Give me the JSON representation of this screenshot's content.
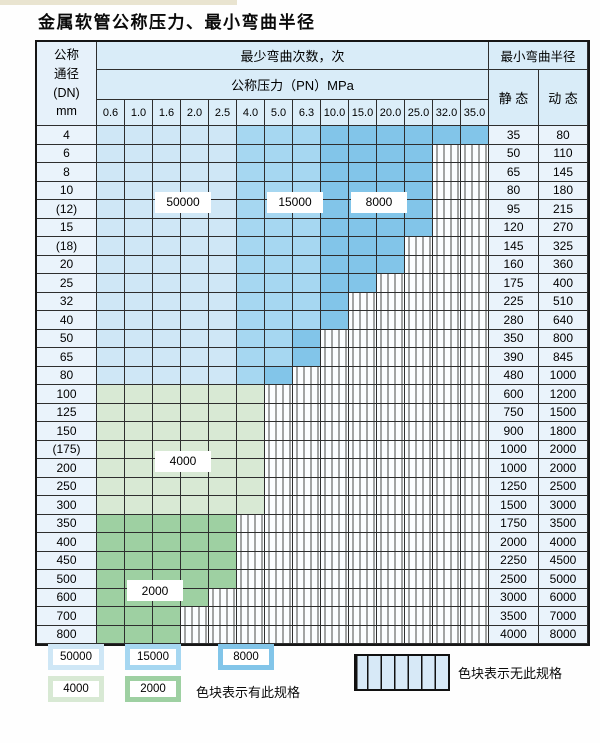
{
  "title": "金属软管公称压力、最小弯曲半径",
  "header": {
    "dn_lines": [
      "公称",
      "通径",
      "(DN)",
      "mm"
    ],
    "cycles_label": "最少弯曲次数，次",
    "pressure_label": "公称压力（PN）MPa",
    "radius_label": "最小弯曲半径",
    "static_label": "静 态",
    "dynamic_label": "动 态",
    "pressures": [
      "0.6",
      "1.0",
      "1.6",
      "2.0",
      "2.5",
      "4.0",
      "5.0",
      "6.3",
      "10.0",
      "15.0",
      "20.0",
      "25.0",
      "32.0",
      "35.0"
    ]
  },
  "colors": {
    "cycle_50000": "#cfe7f6",
    "cycle_15000": "#a6d7f1",
    "cycle_8000": "#82c5e9",
    "cycle_4000": "#d8e9d4",
    "cycle_2000": "#9ed0a2",
    "header_bg": "#d9ecf8",
    "label_col_bg": "#eaf3fb",
    "grid_line": "#2e2e2e"
  },
  "cell_codes": {
    "L": "cycle_50000",
    "M": "cycle_15000",
    "D": "cycle_8000",
    "G": "cycle_4000",
    "E": "cycle_2000",
    "X": "none"
  },
  "table": {
    "rows": [
      {
        "dn": "4",
        "cells": "LLLLLMMMDDDDDD",
        "static": "35",
        "dynamic": "80"
      },
      {
        "dn": "6",
        "cells": "LLLLLMMMDDDDXX",
        "static": "50",
        "dynamic": "110"
      },
      {
        "dn": "8",
        "cells": "LLLLLMMMDDDDXX",
        "static": "65",
        "dynamic": "145"
      },
      {
        "dn": "10",
        "cells": "LLLLLMMMDDDDXX",
        "static": "80",
        "dynamic": "180"
      },
      {
        "dn": "(12)",
        "cells": "LLLLLMMMDDDDXX",
        "static": "95",
        "dynamic": "215"
      },
      {
        "dn": "15",
        "cells": "LLLLLMMMDDDDXX",
        "static": "120",
        "dynamic": "270"
      },
      {
        "dn": "(18)",
        "cells": "LLLLLMMMDDDXXX",
        "static": "145",
        "dynamic": "325"
      },
      {
        "dn": "20",
        "cells": "LLLLLMMMDDDXXX",
        "static": "160",
        "dynamic": "360"
      },
      {
        "dn": "25",
        "cells": "LLLLLMMMDDXXXX",
        "static": "175",
        "dynamic": "400"
      },
      {
        "dn": "32",
        "cells": "LLLLLMMMDXXXXX",
        "static": "225",
        "dynamic": "510"
      },
      {
        "dn": "40",
        "cells": "LLLLLMMMDXXXXX",
        "static": "280",
        "dynamic": "640"
      },
      {
        "dn": "50",
        "cells": "LLLLLMMDXXXXXX",
        "static": "350",
        "dynamic": "800"
      },
      {
        "dn": "65",
        "cells": "LLLLLMMDXXXXXX",
        "static": "390",
        "dynamic": "845"
      },
      {
        "dn": "80",
        "cells": "LLLLLMDXXXXXXX",
        "static": "480",
        "dynamic": "1000"
      },
      {
        "dn": "100",
        "cells": "GGGGGGXXXXXXXX",
        "static": "600",
        "dynamic": "1200"
      },
      {
        "dn": "125",
        "cells": "GGGGGGXXXXXXXX",
        "static": "750",
        "dynamic": "1500"
      },
      {
        "dn": "150",
        "cells": "GGGGGGXXXXXXXX",
        "static": "900",
        "dynamic": "1800"
      },
      {
        "dn": "(175)",
        "cells": "GGGGGGXXXXXXXX",
        "static": "1000",
        "dynamic": "2000"
      },
      {
        "dn": "200",
        "cells": "GGGGGGXXXXXXXX",
        "static": "1000",
        "dynamic": "2000"
      },
      {
        "dn": "250",
        "cells": "GGGGGGXXXXXXXX",
        "static": "1250",
        "dynamic": "2500"
      },
      {
        "dn": "300",
        "cells": "GGGGGGXXXXXXXX",
        "static": "1500",
        "dynamic": "3000"
      },
      {
        "dn": "350",
        "cells": "EEEEEXXXXXXXXX",
        "static": "1750",
        "dynamic": "3500"
      },
      {
        "dn": "400",
        "cells": "EEEEEXXXXXXXXX",
        "static": "2000",
        "dynamic": "4000"
      },
      {
        "dn": "450",
        "cells": "EEEEEXXXXXXXXX",
        "static": "2250",
        "dynamic": "4500"
      },
      {
        "dn": "500",
        "cells": "EEEEEXXXXXXXXX",
        "static": "2500",
        "dynamic": "5000"
      },
      {
        "dn": "600",
        "cells": "EEEEXXXXXXXXXX",
        "static": "3000",
        "dynamic": "6000"
      },
      {
        "dn": "700",
        "cells": "EEEXXXXXXXXXXX",
        "static": "3500",
        "dynamic": "7000"
      },
      {
        "dn": "800",
        "cells": "EEEXXXXXXXXXXX",
        "static": "4000",
        "dynamic": "8000"
      }
    ]
  },
  "overlays": [
    {
      "text": "50000",
      "col": 2,
      "colspan": 2,
      "row": 3,
      "rowspan": 2
    },
    {
      "text": "15000",
      "col": 6,
      "colspan": 2,
      "row": 3,
      "rowspan": 2
    },
    {
      "text": "8000",
      "col": 9,
      "colspan": 2,
      "row": 3,
      "rowspan": 2
    },
    {
      "text": "4000",
      "col": 2,
      "colspan": 2,
      "row": 17,
      "rowspan": 2
    },
    {
      "text": "2000",
      "col": 1,
      "colspan": 2,
      "row": 24,
      "rowspan": 2
    }
  ],
  "legend": {
    "items": [
      {
        "value": "50000",
        "color": "cycle_50000"
      },
      {
        "value": "15000",
        "color": "cycle_15000"
      },
      {
        "value": "8000",
        "color": "cycle_8000"
      },
      {
        "value": "4000",
        "color": "cycle_4000"
      },
      {
        "value": "2000",
        "color": "cycle_2000"
      }
    ],
    "has_spec_note": "色块表示有此规格",
    "no_spec_note": "色块表示无此规格"
  }
}
